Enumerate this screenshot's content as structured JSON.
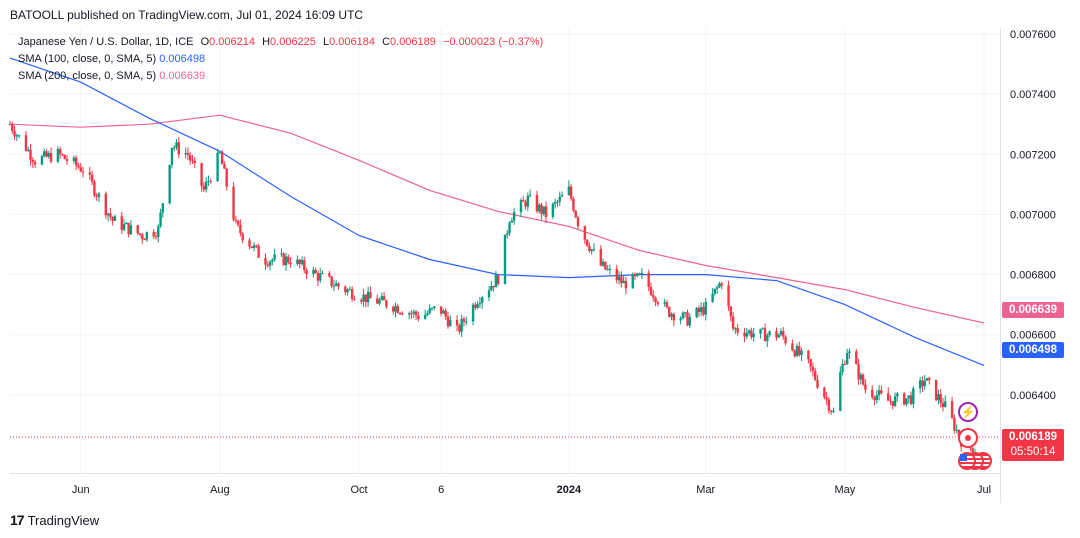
{
  "header": {
    "published": "BATOOLL published on TradingView.com, Jul 01, 2024 16:09 UTC"
  },
  "legend": {
    "symbol": "Japanese Yen / U.S. Dollar, 1D, ICE",
    "open_k": "O",
    "open": "0.006214",
    "high_k": "H",
    "high": "0.006225",
    "low_k": "L",
    "low": "0.006184",
    "close_k": "C",
    "close": "0.006189",
    "change": "−0.000023 (−0.37%)",
    "sma100_label": "SMA (100, close, 0, SMA, 5)",
    "sma100_value": "0.006498",
    "sma200_label": "SMA (200, close, 0, SMA, 5)",
    "sma200_value": "0.006639"
  },
  "price_tags": {
    "sma200": "0.006639",
    "sma100": "0.006498",
    "last": "0.006189",
    "countdown": "05:50:14"
  },
  "colors": {
    "up": "#089981",
    "down": "#f23645",
    "sma100": "#2962ff",
    "sma200": "#f06292"
  },
  "footer": {
    "brand": "TradingView"
  },
  "chart_data": {
    "type": "candlestick",
    "y_ticks": [
      "0.007600",
      "0.007400",
      "0.007200",
      "0.007000",
      "0.006800",
      "0.006600",
      "0.006400"
    ],
    "x_ticks": [
      "Jun",
      "Aug",
      "Oct",
      "6",
      "2024",
      "Mar",
      "May",
      "Jul"
    ],
    "ylim": [
      0.00614,
      0.00762
    ],
    "close_path": [
      [
        "2023-05-01",
        0.0073
      ],
      [
        "2023-05-12",
        0.00718
      ],
      [
        "2023-05-22",
        0.0072
      ],
      [
        "2023-06-02",
        0.00715
      ],
      [
        "2023-06-15",
        0.00698
      ],
      [
        "2023-06-28",
        0.00693
      ],
      [
        "2023-07-05",
        0.00695
      ],
      [
        "2023-07-11",
        0.00723
      ],
      [
        "2023-07-18",
        0.0072
      ],
      [
        "2023-07-25",
        0.00708
      ],
      [
        "2023-08-01",
        0.0072
      ],
      [
        "2023-08-08",
        0.00696
      ],
      [
        "2023-08-20",
        0.00685
      ],
      [
        "2023-09-01",
        0.00685
      ],
      [
        "2023-09-12",
        0.0068
      ],
      [
        "2023-09-25",
        0.00675
      ],
      [
        "2023-10-05",
        0.00672
      ],
      [
        "2023-10-15",
        0.0067
      ],
      [
        "2023-10-28",
        0.00666
      ],
      [
        "2023-11-05",
        0.00669
      ],
      [
        "2023-11-13",
        0.00661
      ],
      [
        "2023-11-22",
        0.00672
      ],
      [
        "2023-12-01",
        0.00679
      ],
      [
        "2023-12-06",
        0.00699
      ],
      [
        "2023-12-14",
        0.00705
      ],
      [
        "2023-12-22",
        0.007
      ],
      [
        "2024-01-01",
        0.00708
      ],
      [
        "2024-01-06",
        0.00695
      ],
      [
        "2024-01-15",
        0.00683
      ],
      [
        "2024-01-25",
        0.00677
      ],
      [
        "2024-02-02",
        0.00679
      ],
      [
        "2024-02-13",
        0.00668
      ],
      [
        "2024-02-22",
        0.00665
      ],
      [
        "2024-03-01",
        0.00669
      ],
      [
        "2024-03-08",
        0.00678
      ],
      [
        "2024-03-13",
        0.00662
      ],
      [
        "2024-03-25",
        0.0066
      ],
      [
        "2024-04-03",
        0.0066
      ],
      [
        "2024-04-15",
        0.0065
      ],
      [
        "2024-04-26",
        0.00634
      ],
      [
        "2024-04-29",
        0.00647
      ],
      [
        "2024-05-02",
        0.00655
      ],
      [
        "2024-05-10",
        0.00642
      ],
      [
        "2024-05-20",
        0.00638
      ],
      [
        "2024-05-30",
        0.00639
      ],
      [
        "2024-06-05",
        0.00645
      ],
      [
        "2024-06-14",
        0.00636
      ],
      [
        "2024-06-21",
        0.00625
      ],
      [
        "2024-07-01",
        0.006189
      ]
    ],
    "sma100": [
      [
        "2023-05-01",
        0.00752
      ],
      [
        "2023-06-01",
        0.00744
      ],
      [
        "2023-07-01",
        0.00732
      ],
      [
        "2023-08-01",
        0.00721
      ],
      [
        "2023-09-01",
        0.00706
      ],
      [
        "2023-10-01",
        0.00693
      ],
      [
        "2023-11-01",
        0.00685
      ],
      [
        "2023-12-01",
        0.0068
      ],
      [
        "2024-01-01",
        0.00679
      ],
      [
        "2024-02-01",
        0.0068
      ],
      [
        "2024-03-01",
        0.0068
      ],
      [
        "2024-04-01",
        0.00678
      ],
      [
        "2024-05-01",
        0.0067
      ],
      [
        "2024-06-01",
        0.00659
      ],
      [
        "2024-07-01",
        0.006498
      ]
    ],
    "sma200": [
      [
        "2023-05-01",
        0.0073
      ],
      [
        "2023-06-01",
        0.00729
      ],
      [
        "2023-07-01",
        0.0073
      ],
      [
        "2023-08-01",
        0.00733
      ],
      [
        "2023-09-01",
        0.00727
      ],
      [
        "2023-10-01",
        0.00718
      ],
      [
        "2023-11-01",
        0.00708
      ],
      [
        "2023-12-01",
        0.00701
      ],
      [
        "2024-01-01",
        0.00696
      ],
      [
        "2024-02-01",
        0.00688
      ],
      [
        "2024-03-01",
        0.00683
      ],
      [
        "2024-04-01",
        0.00679
      ],
      [
        "2024-05-01",
        0.00675
      ],
      [
        "2024-06-01",
        0.00669
      ],
      [
        "2024-07-01",
        0.006639
      ]
    ]
  }
}
